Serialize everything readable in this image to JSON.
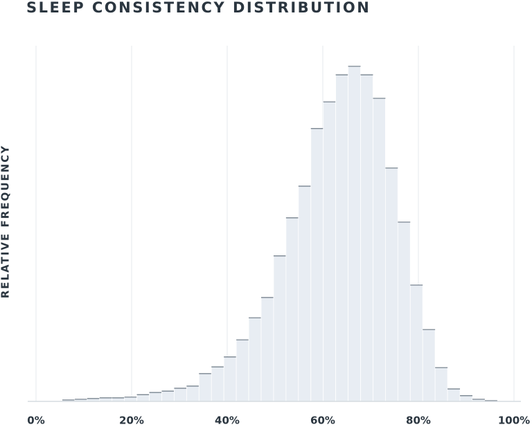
{
  "chart_data": {
    "type": "histogram",
    "title": "SLEEP CONSISTENCY DISTRIBUTION",
    "y_label": "RELATIVE FREQUENCY",
    "bins": [
      5.5,
      8.1,
      10.7,
      13.3,
      15.9,
      18.5,
      21.1,
      23.7,
      26.3,
      28.9,
      31.5,
      34.1,
      36.7,
      39.3,
      41.9,
      44.5,
      47.1,
      49.7,
      52.3,
      54.9,
      57.5,
      60.1,
      62.7,
      65.3,
      67.9,
      70.5,
      73.1,
      75.7,
      78.3,
      80.9,
      83.5,
      86.1,
      88.7,
      91.3,
      93.9,
      96.5
    ],
    "values": [
      0.4,
      0.6,
      0.8,
      1.0,
      1.0,
      1.2,
      1.9,
      2.5,
      2.9,
      3.7,
      4.3,
      7.8,
      9.7,
      12.5,
      17.3,
      23.5,
      29.2,
      40.9,
      51.6,
      60.5,
      76.7,
      84.2,
      91.8,
      94.2,
      91.8,
      85.2,
      65.6,
      50.4,
      32.7,
      20.2,
      9.5,
      3.5,
      1.6,
      0.6,
      0.2
    ],
    "color": "#e8edf3",
    "edge_color": "#6b7884",
    "xlim": [
      0,
      100
    ],
    "xticks": [
      {
        "value": 0,
        "label": "0%"
      },
      {
        "value": 20,
        "label": "20%"
      },
      {
        "value": 40,
        "label": "40%"
      },
      {
        "value": 60,
        "label": "60%"
      },
      {
        "value": 80,
        "label": "80%"
      },
      {
        "value": 100,
        "label": "100%"
      }
    ],
    "ylim": [
      0,
      100
    ],
    "grid": true
  }
}
